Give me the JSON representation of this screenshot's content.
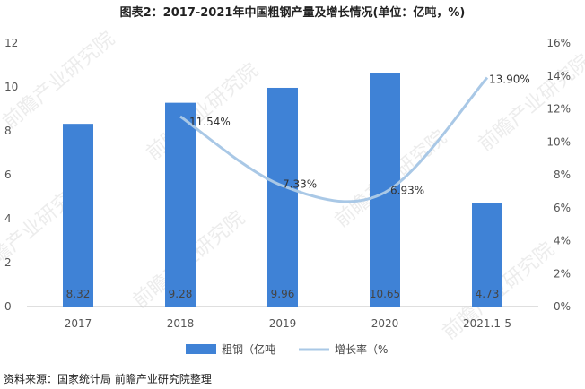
{
  "title": "图表2：2017-2021年中国粗钢产量及增长情况(单位：亿吨，%)",
  "source": "资料来源：国家统计局 前瞻产业研究院整理",
  "watermark": "前瞻产业研究院",
  "colors": {
    "bar": "#3f82d6",
    "line": "#a9c8e6",
    "axis": "#bfbfbf"
  },
  "chart_data": {
    "type": "bar",
    "categories": [
      "2017",
      "2018",
      "2019",
      "2020",
      "2021.1-5"
    ],
    "series": [
      {
        "name": "粗钢（亿吨",
        "type": "bar",
        "axis": "left",
        "values": [
          8.32,
          9.28,
          9.96,
          10.65,
          4.73
        ],
        "labels": [
          "8.32",
          "9.28",
          "9.96",
          "10.65",
          "4.73"
        ]
      },
      {
        "name": "增长率（%",
        "type": "line",
        "axis": "right",
        "smooth": true,
        "values": [
          null,
          11.54,
          7.33,
          6.93,
          13.9
        ],
        "labels": [
          "",
          "11.54%",
          "7.33%",
          "6.93%",
          "13.90%"
        ]
      }
    ],
    "left_axis": {
      "ylim": [
        0,
        12
      ],
      "ticks": [
        "0",
        "2",
        "4",
        "6",
        "8",
        "10",
        "12"
      ]
    },
    "right_axis": {
      "ylim": [
        0,
        16
      ],
      "ticks": [
        "0%",
        "2%",
        "4%",
        "6%",
        "8%",
        "10%",
        "12%",
        "14%",
        "16%"
      ]
    },
    "grid": false,
    "legend_position": "bottom"
  }
}
